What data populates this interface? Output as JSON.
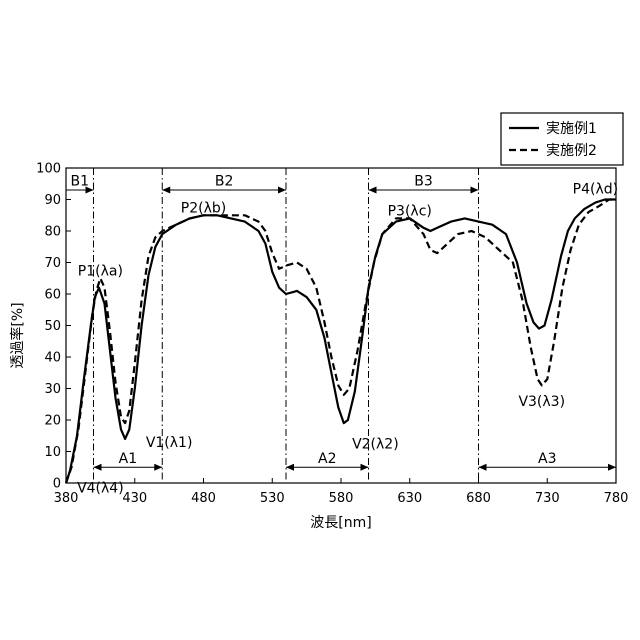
{
  "chart_data": {
    "type": "line",
    "xlabel": "波長[nm]",
    "ylabel": "透過率[%]",
    "xlim": [
      380,
      780
    ],
    "ylim": [
      0,
      100
    ],
    "xticks": [
      380,
      430,
      480,
      530,
      580,
      630,
      680,
      730,
      780
    ],
    "yticks": [
      0,
      10,
      20,
      30,
      40,
      50,
      60,
      70,
      80,
      90,
      100
    ],
    "grid": false,
    "legend_position": "top-right",
    "series": [
      {
        "name": "実施例1",
        "style": "solid",
        "points": [
          [
            380,
            0
          ],
          [
            383,
            4
          ],
          [
            388,
            15
          ],
          [
            393,
            33
          ],
          [
            398,
            50
          ],
          [
            401,
            59
          ],
          [
            404,
            62
          ],
          [
            408,
            57
          ],
          [
            412,
            42
          ],
          [
            416,
            27
          ],
          [
            420,
            17
          ],
          [
            423,
            14
          ],
          [
            426,
            17
          ],
          [
            430,
            30
          ],
          [
            435,
            50
          ],
          [
            440,
            66
          ],
          [
            445,
            75
          ],
          [
            450,
            79
          ],
          [
            460,
            82
          ],
          [
            470,
            84
          ],
          [
            480,
            85
          ],
          [
            490,
            85
          ],
          [
            500,
            84
          ],
          [
            510,
            83
          ],
          [
            520,
            80
          ],
          [
            525,
            76
          ],
          [
            530,
            67
          ],
          [
            535,
            62
          ],
          [
            540,
            60
          ],
          [
            548,
            61
          ],
          [
            555,
            59
          ],
          [
            562,
            55
          ],
          [
            568,
            46
          ],
          [
            573,
            35
          ],
          [
            578,
            24
          ],
          [
            582,
            19
          ],
          [
            585,
            20
          ],
          [
            590,
            29
          ],
          [
            595,
            45
          ],
          [
            600,
            62
          ],
          [
            605,
            72
          ],
          [
            610,
            79
          ],
          [
            620,
            83
          ],
          [
            630,
            84
          ],
          [
            640,
            81
          ],
          [
            645,
            80
          ],
          [
            650,
            81
          ],
          [
            660,
            83
          ],
          [
            670,
            84
          ],
          [
            680,
            83
          ],
          [
            690,
            82
          ],
          [
            700,
            79
          ],
          [
            708,
            70
          ],
          [
            715,
            57
          ],
          [
            720,
            51
          ],
          [
            724,
            49
          ],
          [
            728,
            50
          ],
          [
            733,
            58
          ],
          [
            740,
            72
          ],
          [
            745,
            80
          ],
          [
            750,
            84
          ],
          [
            757,
            87
          ],
          [
            765,
            89
          ],
          [
            772,
            90
          ],
          [
            780,
            90
          ]
        ]
      },
      {
        "name": "実施例2",
        "style": "dashed",
        "points": [
          [
            380,
            0
          ],
          [
            384,
            5
          ],
          [
            389,
            17
          ],
          [
            394,
            35
          ],
          [
            399,
            53
          ],
          [
            402,
            61
          ],
          [
            405,
            65
          ],
          [
            408,
            62
          ],
          [
            412,
            48
          ],
          [
            416,
            32
          ],
          [
            420,
            21
          ],
          [
            423,
            19
          ],
          [
            426,
            23
          ],
          [
            430,
            38
          ],
          [
            435,
            58
          ],
          [
            440,
            72
          ],
          [
            445,
            78
          ],
          [
            450,
            80
          ],
          [
            460,
            82
          ],
          [
            470,
            84
          ],
          [
            480,
            85
          ],
          [
            490,
            85
          ],
          [
            500,
            85
          ],
          [
            510,
            85
          ],
          [
            520,
            83
          ],
          [
            525,
            80
          ],
          [
            530,
            73
          ],
          [
            535,
            68
          ],
          [
            540,
            69
          ],
          [
            548,
            70
          ],
          [
            555,
            68
          ],
          [
            562,
            62
          ],
          [
            568,
            51
          ],
          [
            573,
            40
          ],
          [
            578,
            31
          ],
          [
            582,
            28
          ],
          [
            586,
            30
          ],
          [
            592,
            42
          ],
          [
            598,
            57
          ],
          [
            604,
            70
          ],
          [
            610,
            79
          ],
          [
            620,
            84
          ],
          [
            630,
            84
          ],
          [
            640,
            79
          ],
          [
            645,
            74
          ],
          [
            650,
            73
          ],
          [
            655,
            75
          ],
          [
            665,
            79
          ],
          [
            675,
            80
          ],
          [
            685,
            78
          ],
          [
            695,
            74
          ],
          [
            705,
            70
          ],
          [
            712,
            58
          ],
          [
            718,
            43
          ],
          [
            723,
            33
          ],
          [
            726,
            31
          ],
          [
            730,
            33
          ],
          [
            735,
            45
          ],
          [
            741,
            62
          ],
          [
            747,
            74
          ],
          [
            753,
            82
          ],
          [
            760,
            86
          ],
          [
            768,
            88
          ],
          [
            775,
            90
          ],
          [
            780,
            90
          ]
        ]
      }
    ],
    "annotations": {
      "vlines": [
        400,
        450,
        540,
        600,
        680
      ],
      "arrows": [
        {
          "label": "B1",
          "x1": 380,
          "x2": 400,
          "y": 93,
          "label_y": 96,
          "heads": "end"
        },
        {
          "label": "B2",
          "x1": 450,
          "x2": 540,
          "y": 93,
          "label_y": 96,
          "heads": "both"
        },
        {
          "label": "B3",
          "x1": 600,
          "x2": 680,
          "y": 93,
          "label_y": 96,
          "heads": "both"
        },
        {
          "label": "A1",
          "x1": 400,
          "x2": 450,
          "y": 5,
          "label_y": 8,
          "heads": "both"
        },
        {
          "label": "A2",
          "x1": 540,
          "x2": 600,
          "y": 5,
          "label_y": 8,
          "heads": "both"
        },
        {
          "label": "A3",
          "x1": 680,
          "x2": 780,
          "y": 5,
          "label_y": 8,
          "heads": "both"
        }
      ],
      "point_labels": [
        {
          "text": "P1(λa)",
          "x": 405,
          "y": 67.5
        },
        {
          "text": "P2(λb)",
          "x": 480,
          "y": 87.5
        },
        {
          "text": "P3(λc)",
          "x": 630,
          "y": 86.5
        },
        {
          "text": "P4(λd)",
          "x": 765,
          "y": 93.5
        },
        {
          "text": "V1(λ1)",
          "x": 455,
          "y": 13
        },
        {
          "text": "V2(λ2)",
          "x": 605,
          "y": 12.5
        },
        {
          "text": "V3(λ3)",
          "x": 726,
          "y": 26
        },
        {
          "text": "V4(λ4)",
          "x": 405,
          "y": -1.5
        }
      ]
    }
  }
}
